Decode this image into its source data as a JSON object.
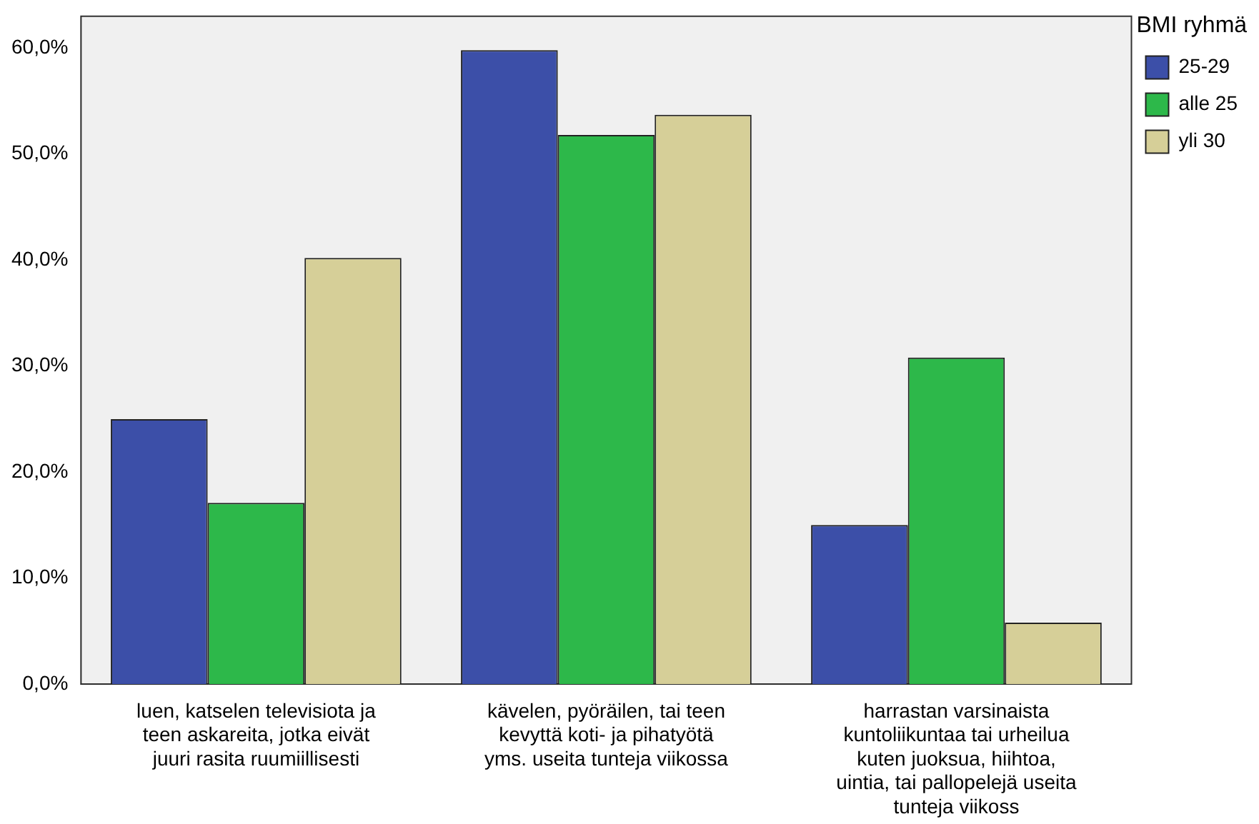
{
  "chart_data": {
    "type": "bar",
    "legend_title": "BMI ryhmä",
    "legend": "right",
    "categories": [
      "luen, katselen televisiota ja teen askareita, jotka eivät juuri rasita ruumiillisesti",
      "kävelen, pyöräilen, tai teen kevyttä koti- ja pihatyötä yms. useita tunteja viikossa",
      "harrastan varsinaista kuntoliikuntaa tai urheilua kuten juoksua, hiihtoa, uintia, tai pallopelejä useita tunteja viikoss"
    ],
    "series": [
      {
        "name": "25-29",
        "color": "#3c4fa8",
        "values": [
          25.0,
          59.8,
          15.0
        ]
      },
      {
        "name": "alle 25",
        "color": "#2db84a",
        "values": [
          17.1,
          51.8,
          30.8
        ]
      },
      {
        "name": "yli 30",
        "color": "#d6cf98",
        "values": [
          40.2,
          53.7,
          5.8
        ]
      }
    ],
    "ylim": [
      0,
      63
    ],
    "yticks": [
      {
        "value": 0,
        "label": "0,0%"
      },
      {
        "value": 10,
        "label": "10,0%"
      },
      {
        "value": 20,
        "label": "20,0%"
      },
      {
        "value": 30,
        "label": "30,0%"
      },
      {
        "value": 40,
        "label": "40,0%"
      },
      {
        "value": 50,
        "label": "50,0%"
      },
      {
        "value": 60,
        "label": "60,0%"
      }
    ],
    "grid": false
  }
}
